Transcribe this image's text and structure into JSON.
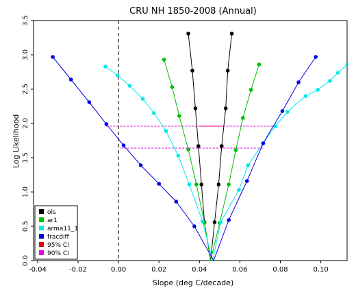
{
  "chart_data": {
    "type": "line",
    "title": "CRU NH 1850-2008 (Annual)",
    "xlabel": "Slope (deg C/decade)",
    "ylabel": "Log Likelihood",
    "xlim": [
      -0.042,
      0.113
    ],
    "ylim": [
      0.0,
      3.5
    ],
    "xticks": [
      -0.04,
      -0.02,
      0.0,
      0.02,
      0.04,
      0.06,
      0.08,
      0.1
    ],
    "xtick_labels": [
      "-0.04",
      "-0.02",
      "0.00",
      "0.02",
      "0.04",
      "0.06",
      "0.08",
      "0.10"
    ],
    "yticks": [
      0.0,
      0.5,
      1.0,
      1.5,
      2.0,
      2.5,
      3.0,
      3.5
    ],
    "ytick_labels": [
      "0.0",
      "0.5",
      "1.0",
      "1.5",
      "2.0",
      "2.5",
      "3.0",
      "3.5"
    ],
    "zero_line_x": 0.0,
    "grid": false,
    "legend_position": "bottom-left",
    "series": [
      {
        "name": "ols",
        "color": "#000000",
        "left": [
          [
            0.0345,
            3.31
          ],
          [
            0.0365,
            2.77
          ],
          [
            0.038,
            2.22
          ],
          [
            0.0395,
            1.67
          ],
          [
            0.041,
            1.11
          ],
          [
            0.0425,
            0.56
          ],
          [
            0.0455,
            0.0
          ]
        ],
        "right": [
          [
            0.0455,
            0.0
          ],
          [
            0.0475,
            0.56
          ],
          [
            0.0495,
            1.11
          ],
          [
            0.051,
            1.67
          ],
          [
            0.053,
            2.22
          ],
          [
            0.054,
            2.77
          ],
          [
            0.056,
            3.31
          ]
        ]
      },
      {
        "name": "ar1",
        "color": "#00c000",
        "left": [
          [
            0.0225,
            2.93
          ],
          [
            0.0265,
            2.53
          ],
          [
            0.03,
            2.11
          ],
          [
            0.0345,
            1.62
          ],
          [
            0.0385,
            1.11
          ],
          [
            0.0425,
            0.55
          ],
          [
            0.0455,
            0.0
          ]
        ],
        "right": [
          [
            0.0455,
            0.0
          ],
          [
            0.05,
            0.55
          ],
          [
            0.0545,
            1.11
          ],
          [
            0.058,
            1.61
          ],
          [
            0.0615,
            2.08
          ],
          [
            0.0655,
            2.49
          ],
          [
            0.0695,
            2.86
          ]
        ]
      },
      {
        "name": "arma11",
        "color": "#00e8e8",
        "left": [
          [
            -0.0065,
            2.83
          ],
          [
            -0.0005,
            2.7
          ],
          [
            0.0055,
            2.55
          ],
          [
            0.012,
            2.36
          ],
          [
            0.0175,
            2.15
          ],
          [
            0.0235,
            1.89
          ],
          [
            0.0295,
            1.53
          ],
          [
            0.035,
            1.11
          ],
          [
            0.0415,
            0.57
          ],
          [
            0.0465,
            0.0
          ]
        ],
        "right": [
          [
            0.0465,
            0.0
          ],
          [
            0.0505,
            0.56
          ],
          [
            0.0595,
            1.03
          ],
          [
            0.064,
            1.39
          ],
          [
            0.0715,
            1.71
          ],
          [
            0.0775,
            1.96
          ],
          [
            0.0835,
            2.17
          ],
          [
            0.0925,
            2.4
          ],
          [
            0.0985,
            2.49
          ],
          [
            0.1045,
            2.62
          ],
          [
            0.1085,
            2.74
          ],
          [
            0.113,
            2.86
          ]
        ]
      },
      {
        "name": "fracdiff",
        "color": "#0000e0",
        "left": [
          [
            -0.0325,
            2.97
          ],
          [
            -0.0235,
            2.64
          ],
          [
            -0.0145,
            2.31
          ],
          [
            -0.006,
            1.99
          ],
          [
            0.0025,
            1.68
          ],
          [
            0.011,
            1.39
          ],
          [
            0.02,
            1.12
          ],
          [
            0.0285,
            0.86
          ],
          [
            0.0375,
            0.5
          ],
          [
            0.047,
            0.0
          ]
        ],
        "right": [
          [
            0.047,
            0.0
          ],
          [
            0.0545,
            0.59
          ],
          [
            0.0635,
            1.16
          ],
          [
            0.0715,
            1.71
          ],
          [
            0.081,
            2.18
          ],
          [
            0.089,
            2.6
          ],
          [
            0.0975,
            2.97
          ]
        ]
      }
    ],
    "confidence_intervals": [
      {
        "name": "95% CI",
        "color": "#e00000",
        "y": 1.96,
        "x_start": 0.0395,
        "x_end": 0.0515
      },
      {
        "name": "90% CI",
        "color": "#e000e0",
        "y": 1.96,
        "x_start": -0.006,
        "x_end": 0.0775,
        "dashed": true
      },
      {
        "name": "90% CI",
        "color": "#e000e0",
        "y": 1.64,
        "x_start": 0.001,
        "x_end": 0.0715,
        "dashed": true
      }
    ],
    "legend": [
      {
        "label": "ols",
        "color": "#000000"
      },
      {
        "label": "ar1",
        "color": "#00c000"
      },
      {
        "label": "arma11_1",
        "color": "#00e8e8"
      },
      {
        "label": "fracdiff",
        "color": "#0000e0"
      },
      {
        "label": "95% CI",
        "color": "#e00000"
      },
      {
        "label": "90% CI",
        "color": "#e000e0"
      }
    ]
  }
}
